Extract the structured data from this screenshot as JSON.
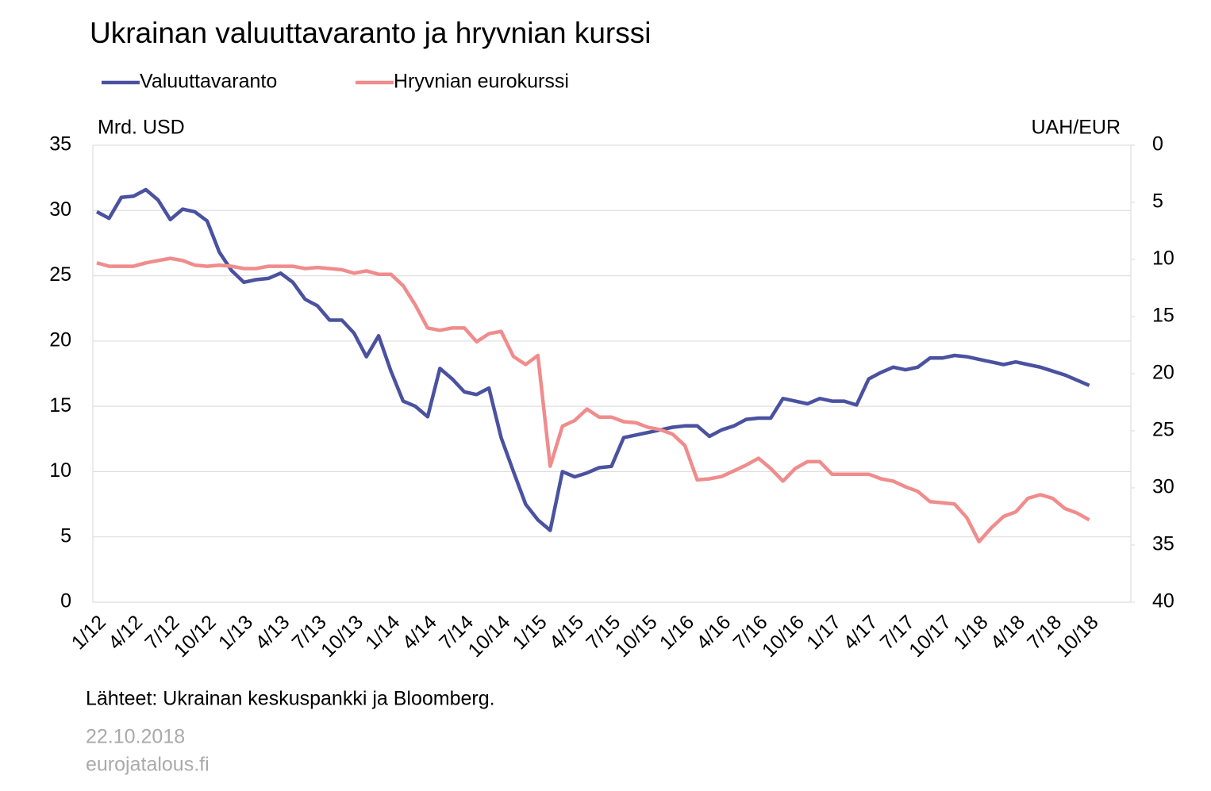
{
  "chart_data": {
    "type": "line",
    "title": "Ukrainan valuuttavaranto ja hryvnian kurssi",
    "ylabel": "Mrd. USD",
    "y2label": "UAH/EUR",
    "source": "Lähteet: Ukrainan keskuspankki ja Bloomberg.",
    "date": "22.10.2018",
    "website": "eurojatalous.fi",
    "categories": [
      "1/12",
      null,
      null,
      "4/12",
      null,
      null,
      "7/12",
      null,
      null,
      "10/12",
      null,
      null,
      "1/13",
      null,
      null,
      "4/13",
      null,
      null,
      "7/13",
      null,
      null,
      "10/13",
      null,
      null,
      "1/14",
      null,
      null,
      "4/14",
      null,
      null,
      "7/14",
      null,
      null,
      "10/14",
      null,
      null,
      "1/15",
      null,
      null,
      "4/15",
      null,
      null,
      "7/15",
      null,
      null,
      "10/15",
      null,
      null,
      "1/16",
      null,
      null,
      "4/16",
      null,
      null,
      "7/16",
      null,
      null,
      "10/16",
      null,
      null,
      "1/17",
      null,
      null,
      "4/17",
      null,
      null,
      "7/17",
      null,
      null,
      "10/17",
      null,
      null,
      "1/18",
      null,
      null,
      "4/18",
      null,
      null,
      "7/18",
      null,
      null,
      "10/18"
    ],
    "series": [
      {
        "name": "Valuuttavaranto",
        "color": "#4a52a0",
        "axis": "y",
        "values": [
          29.9,
          29.4,
          31.0,
          31.1,
          31.6,
          30.8,
          29.3,
          30.1,
          29.9,
          29.2,
          26.8,
          25.4,
          24.5,
          24.7,
          24.8,
          25.2,
          24.5,
          23.2,
          22.7,
          21.6,
          21.6,
          20.6,
          18.8,
          20.4,
          17.7,
          15.4,
          15.0,
          14.2,
          17.9,
          17.1,
          16.1,
          15.9,
          16.4,
          12.6,
          10.0,
          7.5,
          6.3,
          5.5,
          10.0,
          9.6,
          9.9,
          10.3,
          10.4,
          12.6,
          12.8,
          13.0,
          13.2,
          13.4,
          13.5,
          13.5,
          12.7,
          13.2,
          13.5,
          14.0,
          14.1,
          14.1,
          15.6,
          15.4,
          15.2,
          15.6,
          15.4,
          15.4,
          15.1,
          17.1,
          17.6,
          18.0,
          17.8,
          18.0,
          18.7,
          18.7,
          18.9,
          18.8,
          18.6,
          18.4,
          18.2,
          18.4,
          18.2,
          18.0,
          17.7,
          17.4,
          17.0,
          16.6
        ]
      },
      {
        "name": "Hryvnian eurokurssi",
        "color": "#f08c8c",
        "axis": "y2",
        "values": [
          10.3,
          10.6,
          10.6,
          10.6,
          10.3,
          10.1,
          9.9,
          10.1,
          10.5,
          10.6,
          10.5,
          10.6,
          10.8,
          10.8,
          10.6,
          10.6,
          10.6,
          10.8,
          10.7,
          10.8,
          10.9,
          11.2,
          11.0,
          11.3,
          11.3,
          12.3,
          14.0,
          16.0,
          16.2,
          16.0,
          16.0,
          17.2,
          16.5,
          16.3,
          18.5,
          19.2,
          18.4,
          28.1,
          24.6,
          24.1,
          23.1,
          23.8,
          23.8,
          24.2,
          24.3,
          24.7,
          24.9,
          25.3,
          26.3,
          29.3,
          29.2,
          29.0,
          28.5,
          28.0,
          27.4,
          28.3,
          29.4,
          28.3,
          27.7,
          27.7,
          28.8,
          28.8,
          28.8,
          28.8,
          29.2,
          29.4,
          29.9,
          30.3,
          31.2,
          31.3,
          31.4,
          32.6,
          34.7,
          33.5,
          32.5,
          32.1,
          30.9,
          30.6,
          30.9,
          31.8,
          32.2,
          32.8
        ]
      }
    ],
    "ylim": [
      0,
      35
    ],
    "yticks": [
      0,
      5,
      10,
      15,
      20,
      25,
      30,
      35
    ],
    "y2lim": [
      0,
      40
    ],
    "y2ticks": [
      0,
      5,
      10,
      15,
      20,
      25,
      30,
      35,
      40
    ],
    "y2_inverted": true,
    "grid": true
  }
}
